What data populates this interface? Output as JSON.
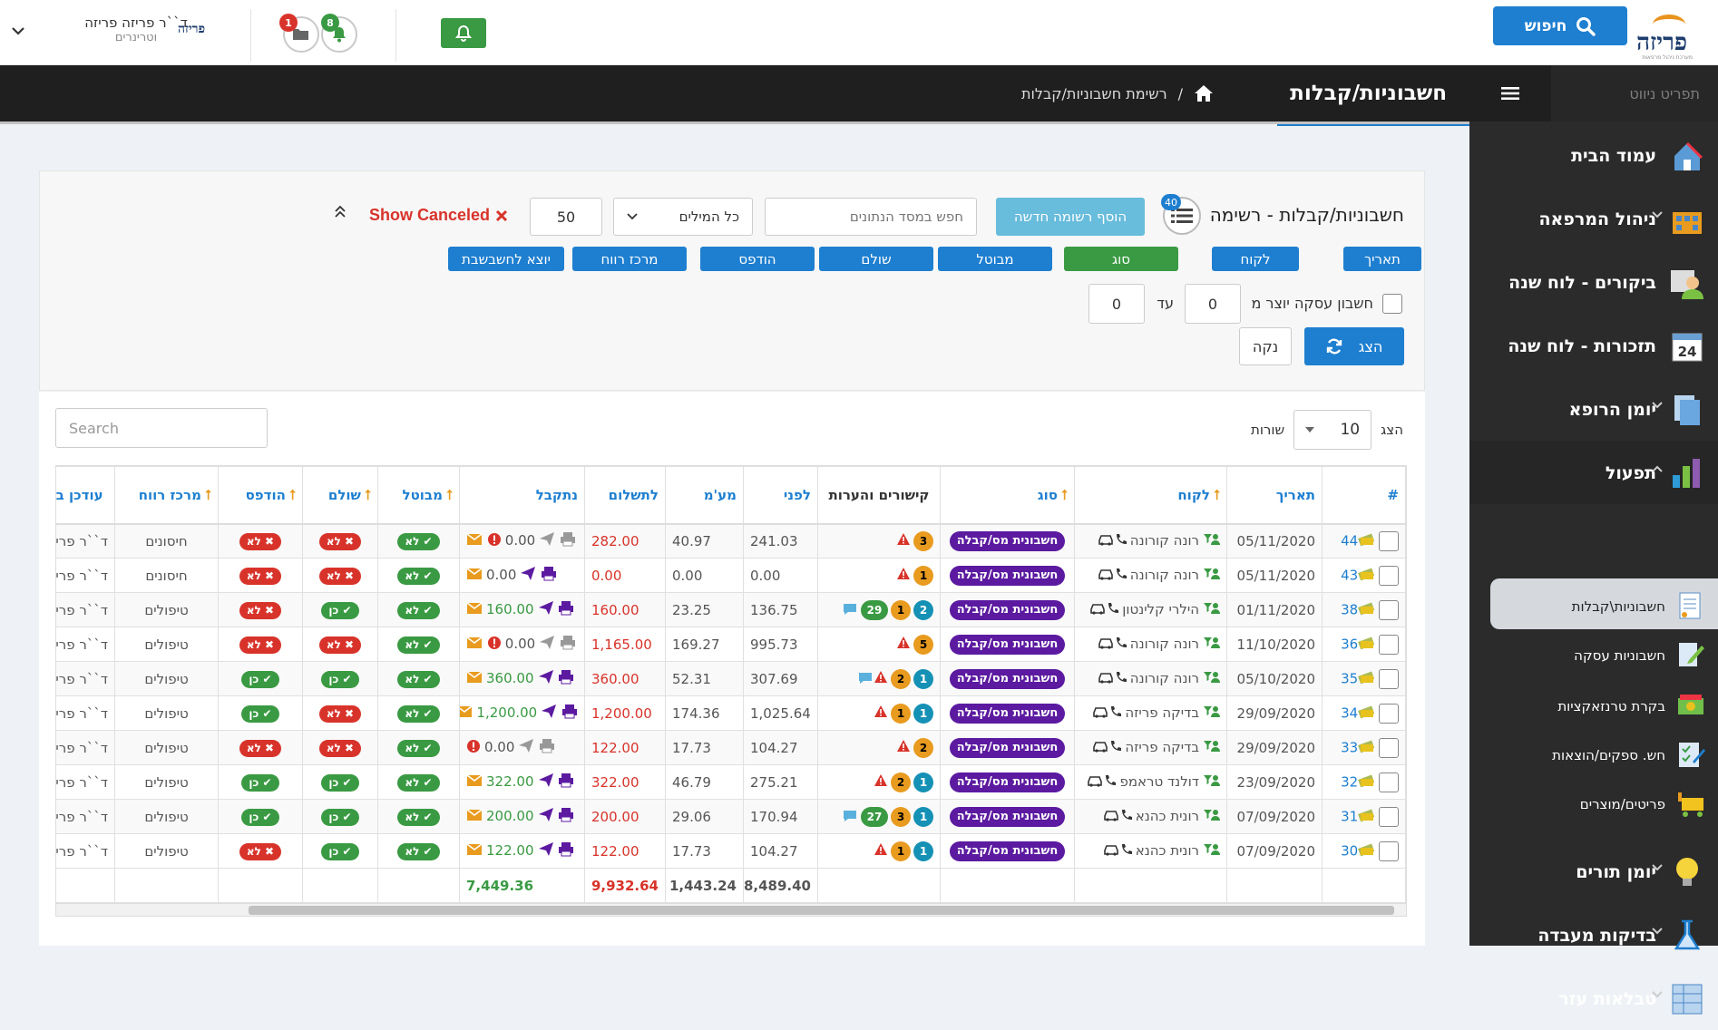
{
  "topbar": {
    "logo_text": "פריזה",
    "logo_sub": "מערכת ניהול מרפאות",
    "search_label": "חיפוש",
    "folder_badge": "1",
    "bell_badge": "8",
    "user_name": "ד``ר פריזה פריזה",
    "user_role": "וטרינרים",
    "user_logo": "פריזה",
    "colors": {
      "primary": "#1e7fd0",
      "green": "#3a9a43",
      "red": "#d8332a"
    }
  },
  "header": {
    "title": "חשבוניות/קבלות",
    "breadcrumb": "רשימת חשבוניות/קבלות"
  },
  "sidebar": {
    "menu_label": "תפריט ניווט",
    "items": [
      {
        "label": "עמוד הבית",
        "icon": "house-icon"
      },
      {
        "label": "ניהול המרפאה",
        "icon": "building-icon"
      },
      {
        "label": "ביקורים - לוח שנה",
        "icon": "calendar-user-icon"
      },
      {
        "label": "תזכורות - לוח שנה",
        "icon": "calendar-24-icon"
      },
      {
        "label": "יומן הרופא",
        "icon": "documents-icon"
      },
      {
        "label": "תפעול",
        "icon": "chart-bars-icon"
      },
      {
        "label": "יומן תורים",
        "icon": "lightbulb-icon"
      },
      {
        "label": "בדיקות מעבדה",
        "icon": "lab-tube-icon"
      },
      {
        "label": "טבלאות עזר",
        "icon": "table-grid-icon"
      }
    ],
    "subitems": [
      {
        "label": "חשבוניות\\קבלות",
        "icon": "invoice-icon"
      },
      {
        "label": "חשבוניות עסקה",
        "icon": "edit-document-icon"
      },
      {
        "label": "בקרת טרנזאקציות",
        "icon": "money-icon"
      },
      {
        "label": "חש. ספקים/הוצאות",
        "icon": "checklist-icon"
      },
      {
        "label": "פריטים/מוצרים",
        "icon": "cart-icon"
      }
    ]
  },
  "filters": {
    "list_title": "חשבוניות/קבלות - רשימה",
    "list_count": "40",
    "add_label": "הוסף רשומה חדשה",
    "search_placeholder": "חפש במסד הנתונים",
    "words_select": "כל המילים",
    "page_size": "50",
    "show_canceled": "Show Canceled",
    "column_buttons": [
      "תאריך",
      "לקוח",
      "סוג",
      "מבוטל",
      "שולם",
      "הודפס",
      "מרכז רווח",
      "יוצא לחשבשבת"
    ],
    "range_label": "חשבון עסקה יוצר מ",
    "range_from": "0",
    "range_to_label": "עד",
    "range_to": "0",
    "show_label": "הצג",
    "clear_label": "נקה"
  },
  "table_controls": {
    "show_label": "הצג",
    "rows_value": "10",
    "rows_label": "שורות",
    "search_placeholder": "Search"
  },
  "table": {
    "headers": [
      "#",
      "תאריך",
      "לקוח",
      "סוג",
      "קישורים והערות",
      "לפני",
      "מע'מ",
      "לתשלום",
      "נתקבל",
      "מבוטל",
      "שולם",
      "הודפס",
      "מרכז רווח",
      "עודכן בידי"
    ],
    "rows": [
      {
        "id": "44",
        "date": "05/11/2020",
        "client": "רונה קורונה",
        "type": "חשבונית מס/קבלה",
        "links": [
          {
            "n": "3",
            "c": "o"
          }
        ],
        "warn": true,
        "chat": false,
        "before": "241.03",
        "vat": "40.97",
        "pay": "282.00",
        "recv": "0.00",
        "recv_alert": true,
        "sent": false,
        "canceled": "לא",
        "paid": "לא",
        "printed": "לא",
        "profit": "חיסונים",
        "by": "ד``ר פריזה"
      },
      {
        "id": "43",
        "date": "05/11/2020",
        "client": "רונה קורונה",
        "type": "חשבונית מס/קבלה",
        "links": [
          {
            "n": "1",
            "c": "o"
          }
        ],
        "warn": true,
        "chat": false,
        "before": "0.00",
        "vat": "0.00",
        "pay": "0.00",
        "recv": "0.00",
        "recv_alert": false,
        "sent": true,
        "canceled": "לא",
        "paid": "לא",
        "printed": "לא",
        "profit": "חיסונים",
        "by": "ד``ר פריזה"
      },
      {
        "id": "38",
        "date": "01/11/2020",
        "client": "הילרי קלינטון",
        "type": "חשבונית מס/קבלה",
        "links": [
          {
            "n": "2",
            "c": "t"
          },
          {
            "n": "1",
            "c": "o"
          },
          {
            "n": "29",
            "c": "g"
          }
        ],
        "warn": false,
        "chat": true,
        "before": "136.75",
        "vat": "23.25",
        "pay": "160.00",
        "recv": "160.00",
        "recv_alert": false,
        "sent": true,
        "canceled": "לא",
        "paid": "כן",
        "printed": "לא",
        "profit": "טיפולים",
        "by": "ד``ר פריזה"
      },
      {
        "id": "36",
        "date": "11/10/2020",
        "client": "רונה קורונה",
        "type": "חשבונית מס/קבלה",
        "links": [
          {
            "n": "5",
            "c": "o"
          }
        ],
        "warn": true,
        "chat": false,
        "before": "995.73",
        "vat": "169.27",
        "pay": "1,165.00",
        "recv": "0.00",
        "recv_alert": true,
        "sent": false,
        "canceled": "לא",
        "paid": "לא",
        "printed": "לא",
        "profit": "טיפולים",
        "by": "ד``ר פריזה"
      },
      {
        "id": "35",
        "date": "05/10/2020",
        "client": "רונה קורונה",
        "type": "חשבונית מס/קבלה",
        "links": [
          {
            "n": "1",
            "c": "t"
          },
          {
            "n": "2",
            "c": "o"
          }
        ],
        "warn": true,
        "chat": true,
        "before": "307.69",
        "vat": "52.31",
        "pay": "360.00",
        "recv": "360.00",
        "recv_alert": false,
        "sent": true,
        "canceled": "לא",
        "paid": "כן",
        "printed": "כן",
        "profit": "טיפולים",
        "by": "ד``ר פריזה"
      },
      {
        "id": "34",
        "date": "29/09/2020",
        "client": "בדיקה פריזה",
        "type": "חשבונית מס/קבלה",
        "links": [
          {
            "n": "1",
            "c": "t"
          },
          {
            "n": "1",
            "c": "o"
          }
        ],
        "warn": true,
        "chat": false,
        "before": "1,025.64",
        "vat": "174.36",
        "pay": "1,200.00",
        "recv": "1,200.00",
        "recv_alert": false,
        "sent": true,
        "canceled": "לא",
        "paid": "לא",
        "printed": "כן",
        "profit": "טיפולים",
        "by": "ד``ר פריזה"
      },
      {
        "id": "33",
        "date": "29/09/2020",
        "client": "בדיקה פריזה",
        "type": "חשבונית מס/קבלה",
        "links": [
          {
            "n": "2",
            "c": "o"
          }
        ],
        "warn": true,
        "chat": false,
        "before": "104.27",
        "vat": "17.73",
        "pay": "122.00",
        "recv": "0.00",
        "recv_alert": true,
        "sent": false,
        "canceled": "לא",
        "paid": "לא",
        "printed": "לא",
        "profit": "טיפולים",
        "by": "ד``ר פריזה"
      },
      {
        "id": "32",
        "date": "23/09/2020",
        "client": "דולנד טראמפ",
        "type": "חשבונית מס/קבלה",
        "links": [
          {
            "n": "1",
            "c": "t"
          },
          {
            "n": "2",
            "c": "o"
          }
        ],
        "warn": true,
        "chat": false,
        "before": "275.21",
        "vat": "46.79",
        "pay": "322.00",
        "recv": "322.00",
        "recv_alert": false,
        "sent": true,
        "canceled": "לא",
        "paid": "כן",
        "printed": "כן",
        "profit": "טיפולים",
        "by": "ד``ר פריזה"
      },
      {
        "id": "31",
        "date": "07/09/2020",
        "client": "רונית כהנא",
        "type": "חשבונית מס/קבלה",
        "links": [
          {
            "n": "1",
            "c": "t"
          },
          {
            "n": "3",
            "c": "o"
          },
          {
            "n": "27",
            "c": "g"
          }
        ],
        "warn": false,
        "chat": true,
        "before": "170.94",
        "vat": "29.06",
        "pay": "200.00",
        "recv": "200.00",
        "recv_alert": false,
        "sent": true,
        "canceled": "לא",
        "paid": "כן",
        "printed": "כן",
        "profit": "טיפולים",
        "by": "ד``ר פריזה"
      },
      {
        "id": "30",
        "date": "07/09/2020",
        "client": "רונית כהנא",
        "type": "חשבונית מס/קבלה",
        "links": [
          {
            "n": "1",
            "c": "t"
          },
          {
            "n": "1",
            "c": "o"
          }
        ],
        "warn": true,
        "chat": false,
        "before": "104.27",
        "vat": "17.73",
        "pay": "122.00",
        "recv": "122.00",
        "recv_alert": false,
        "sent": true,
        "canceled": "לא",
        "paid": "כן",
        "printed": "לא",
        "profit": "טיפולים",
        "by": "ד``ר פריזה"
      }
    ],
    "totals": {
      "before": "8,489.40",
      "vat": "1,443.24",
      "pay": "9,932.64",
      "recv": "7,449.36"
    }
  }
}
